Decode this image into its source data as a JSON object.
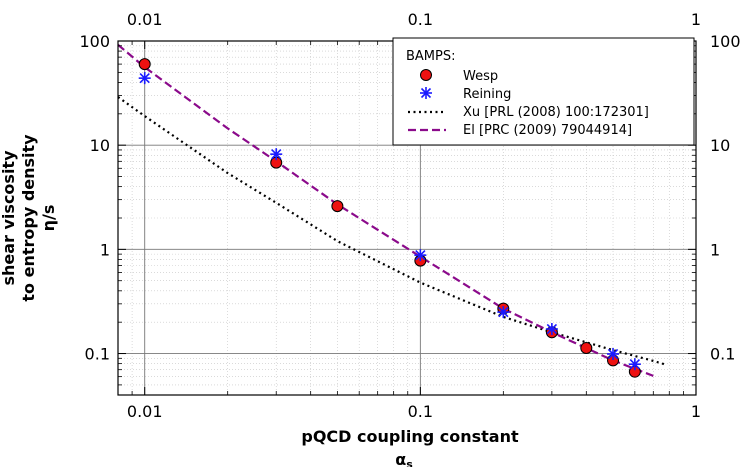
{
  "chart_data": {
    "type": "scatter",
    "xscale": "log",
    "yscale": "log",
    "xlim": [
      0.008,
      1
    ],
    "ylim": [
      0.04,
      100
    ],
    "xticks": [
      0.01,
      0.1,
      1
    ],
    "xtick_labels": [
      "0.01",
      "0.1",
      "1"
    ],
    "yticks": [
      0.1,
      1,
      10,
      100
    ],
    "ytick_labels": [
      "0.1",
      "1",
      "10",
      "100"
    ],
    "grid": true,
    "xlabel_line1": "pQCD coupling constant",
    "xlabel_line2_base": "α",
    "xlabel_line2_sub": "s",
    "ylabel_line1": "shear viscosity",
    "ylabel_line2": "to entropy density",
    "ylabel_line3": "η/s",
    "legend": {
      "title": "BAMPS:",
      "position": "top-right",
      "entries": [
        "Wesp",
        "Reining",
        "Xu [PRL (2008) 100:172301]",
        "El [PRC (2009) 79044914]"
      ]
    },
    "series": [
      {
        "name": "Wesp",
        "style": "marker-circle",
        "color": "#ee1111",
        "x": [
          0.01,
          0.03,
          0.05,
          0.1,
          0.2,
          0.3,
          0.4,
          0.5,
          0.6
        ],
        "y": [
          60,
          6.8,
          2.6,
          0.78,
          0.27,
          0.16,
          0.113,
          0.086,
          0.067
        ]
      },
      {
        "name": "Reining",
        "style": "marker-star",
        "color": "#1a1aff",
        "x": [
          0.01,
          0.03,
          0.1,
          0.2,
          0.3,
          0.5,
          0.6
        ],
        "y": [
          44,
          8.2,
          0.88,
          0.25,
          0.172,
          0.099,
          0.079
        ]
      },
      {
        "name": "Xu [PRL (2008) 100:172301]",
        "style": "dotted-line",
        "color": "#000000",
        "x": [
          0.008,
          0.01,
          0.02,
          0.03,
          0.05,
          0.1,
          0.2,
          0.3,
          0.5,
          0.7,
          0.78
        ],
        "y": [
          29,
          19,
          5.4,
          2.8,
          1.2,
          0.48,
          0.225,
          0.16,
          0.108,
          0.085,
          0.078
        ]
      },
      {
        "name": "El [PRC (2009) 79044914]",
        "style": "dashed-line",
        "color": "#8b0a8b",
        "x": [
          0.008,
          0.01,
          0.02,
          0.03,
          0.05,
          0.1,
          0.2,
          0.3,
          0.5,
          0.7
        ],
        "y": [
          92,
          56,
          14.5,
          7,
          2.7,
          0.85,
          0.27,
          0.16,
          0.086,
          0.061
        ]
      }
    ]
  }
}
